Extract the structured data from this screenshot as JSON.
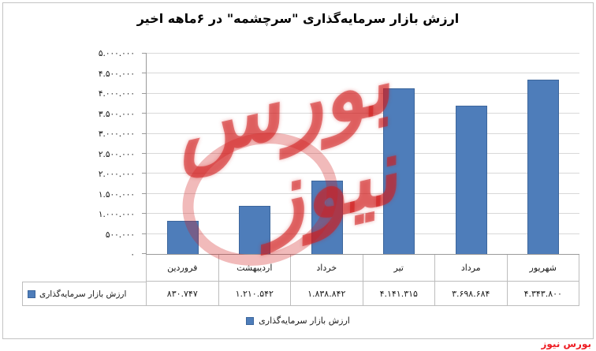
{
  "title": "ارزش بازار سرمایه‌گذاری \"سرچشمه\" در ۶ماهه اخیر",
  "watermark": {
    "line1": "بورس",
    "line2": "نیوز"
  },
  "corner_logo": "بورس نیوز",
  "legend": {
    "label": "ارزش بازار سرمایه‌گذاری"
  },
  "table": {
    "row_label": "ارزش بازار سرمایه‌گذاری"
  },
  "chart_data": {
    "type": "bar",
    "title": "ارزش بازار سرمایه‌گذاری \"سرچشمه\" در ۶ماهه اخیر",
    "categories": [
      "فروردین",
      "اردیبهشت",
      "خرداد",
      "تیر",
      "مرداد",
      "شهریور"
    ],
    "series": [
      {
        "name": "ارزش بازار سرمایه‌گذاری",
        "values": [
          830747,
          1210542,
          1838842,
          4141315,
          3698684,
          4343800
        ],
        "value_labels": [
          "۸۳۰.۷۴۷",
          "۱.۲۱۰.۵۴۲",
          "۱.۸۳۸.۸۴۲",
          "۴.۱۴۱.۳۱۵",
          "۳.۶۹۸.۶۸۴",
          "۴.۳۴۳.۸۰۰"
        ]
      }
    ],
    "ylim": [
      0,
      5000000
    ],
    "ytick_step": 500000,
    "ytick_labels": [
      "۰",
      "۵۰۰.۰۰۰",
      "۱.۰۰۰.۰۰۰",
      "۱.۵۰۰.۰۰۰",
      "۲.۰۰۰.۰۰۰",
      "۲.۵۰۰.۰۰۰",
      "۳.۰۰۰.۰۰۰",
      "۳.۵۰۰.۰۰۰",
      "۴.۰۰۰.۰۰۰",
      "۴.۵۰۰.۰۰۰",
      "۵.۰۰۰.۰۰۰"
    ],
    "grid": true,
    "data_table_shown": true,
    "legend_position": "bottom",
    "bar_color": "#4e7dba"
  },
  "colors": {
    "bar": "#4e7dba",
    "watermark": "#d01c1c",
    "corner_logo": "#ee1c23",
    "gridline": "#d8d8d8",
    "axis": "#9a9a9a",
    "table_border": "#bdbdbd"
  }
}
